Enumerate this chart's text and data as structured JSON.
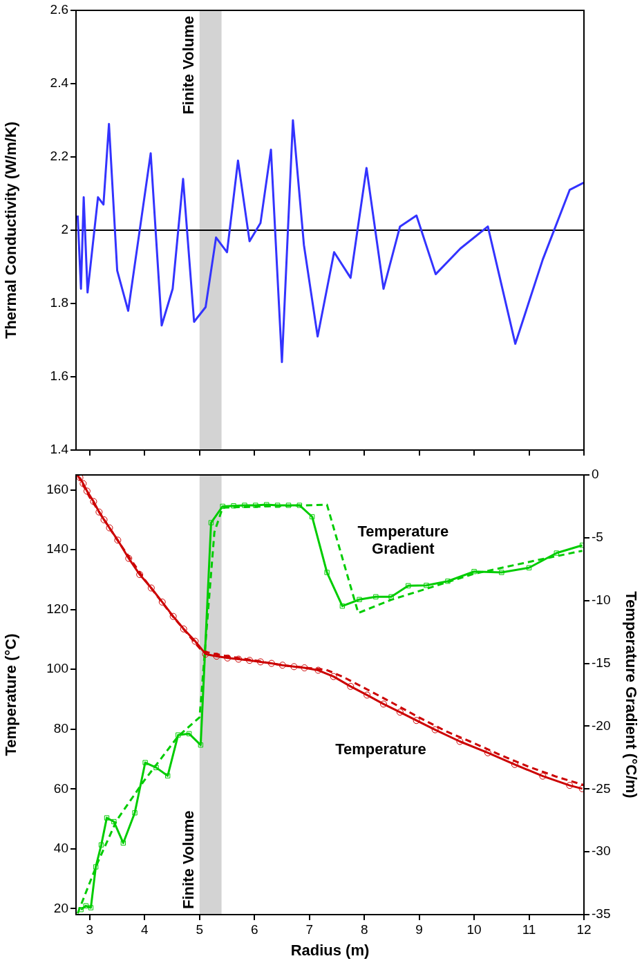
{
  "chart_data": [
    {
      "type": "line",
      "ylabel": "Thermal Conductivity (W/m/K)",
      "color": "#3333ff",
      "x": [
        2.78,
        2.84,
        2.89,
        2.96,
        3.15,
        3.25,
        3.35,
        3.5,
        3.7,
        4.11,
        4.31,
        4.51,
        4.7,
        4.9,
        5.11,
        5.3,
        5.5,
        5.7,
        5.91,
        6.11,
        6.3,
        6.5,
        6.7,
        6.9,
        7.15,
        7.45,
        7.75,
        8.04,
        8.35,
        8.65,
        8.95,
        9.3,
        9.75,
        10.25,
        10.75,
        11.25,
        11.74,
        12.0
      ],
      "values": [
        2.04,
        1.84,
        2.09,
        1.83,
        2.09,
        2.07,
        2.29,
        1.89,
        1.78,
        2.21,
        1.74,
        1.84,
        2.14,
        1.75,
        1.79,
        1.98,
        1.94,
        2.19,
        1.97,
        2.02,
        2.22,
        1.64,
        2.3,
        1.96,
        1.71,
        1.94,
        1.87,
        2.17,
        1.84,
        2.01,
        2.04,
        1.88,
        1.95,
        2.01,
        1.69,
        1.92,
        2.11,
        2.13
      ],
      "xlim": [
        2.75,
        12
      ],
      "xticks": [
        3,
        4,
        5,
        6,
        7,
        8,
        9,
        10,
        11,
        12
      ],
      "ylim": [
        1.4,
        2.6
      ],
      "yticks": [
        1.4,
        1.6,
        1.8,
        2,
        2.2,
        2.4,
        2.6
      ],
      "tick_labels": "y",
      "ref_lines": [
        {
          "axis": "y",
          "value": 2,
          "color": "#000000"
        }
      ],
      "bands": [
        {
          "axis": "x",
          "from": 5.0,
          "to": 5.4,
          "label": "Finite Volume",
          "color": "#d3d3d3"
        }
      ]
    },
    {
      "type": "line",
      "xlabel": "Radius (m)",
      "ylabel": "Temperature (°C)",
      "y2label": "Temperature Gradient (°C/m)",
      "series": [
        {
          "name": "Temperature",
          "color": "#cc0000",
          "marker": "circle",
          "line_style": "solid",
          "x": [
            2.82,
            2.88,
            2.95,
            3.07,
            3.17,
            3.26,
            3.36,
            3.51,
            3.71,
            3.91,
            4.12,
            4.32,
            4.52,
            4.71,
            4.92,
            5.11,
            5.31,
            5.51,
            5.71,
            5.91,
            6.11,
            6.31,
            6.51,
            6.72,
            6.91,
            7.16,
            7.44,
            7.75,
            8.05,
            8.35,
            8.65,
            8.95,
            9.29,
            9.74,
            10.25,
            10.74,
            11.25,
            11.74,
            11.97
          ],
          "values": [
            164.1,
            162.1,
            159.6,
            156.1,
            152.6,
            150.0,
            147.3,
            143.2,
            137.1,
            131.7,
            127.2,
            122.5,
            117.7,
            113.5,
            109.4,
            105.1,
            104.4,
            103.8,
            103.4,
            103.0,
            102.5,
            102.0,
            101.4,
            100.9,
            100.5,
            99.7,
            97.6,
            94.3,
            91.4,
            88.4,
            85.7,
            82.9,
            79.8,
            75.9,
            72.1,
            68.2,
            64.3,
            61.2,
            60.1
          ]
        },
        {
          "color": "#cc0000",
          "marker": "none",
          "line_style": "dashed",
          "x": [
            2.78,
            3,
            3.5,
            4,
            4.5,
            5.05,
            5.5,
            6,
            6.5,
            7,
            7.3,
            7.6,
            8,
            8.5,
            9,
            9.5,
            10,
            10.5,
            11,
            11.5,
            12
          ],
          "values": [
            165,
            157.5,
            143.3,
            130,
            118,
            106,
            104.4,
            103,
            101.4,
            100.4,
            99.9,
            97.6,
            93.8,
            88.9,
            83.9,
            79.2,
            75.3,
            71.2,
            67.4,
            64.1,
            61.3
          ]
        },
        {
          "name": "Temperature Gradient",
          "color": "#00cc00",
          "marker": "square",
          "line_style": "solid",
          "axis": "y2",
          "x": [
            2.84,
            2.93,
            3.02,
            3.11,
            3.21,
            3.31,
            3.44,
            3.61,
            3.82,
            4.01,
            4.21,
            4.42,
            4.61,
            4.81,
            5.02,
            5.21,
            5.42,
            5.62,
            5.82,
            6.02,
            6.22,
            6.42,
            6.62,
            6.82,
            7.05,
            7.32,
            7.6,
            7.91,
            8.21,
            8.49,
            8.8,
            9.13,
            9.52,
            10.0,
            10.5,
            11.0,
            11.5,
            11.97
          ],
          "values": [
            -34.6,
            -34.3,
            -34.45,
            -31.2,
            -29.45,
            -27.3,
            -27.6,
            -29.3,
            -26.9,
            -22.9,
            -23.3,
            -23.95,
            -20.7,
            -20.6,
            -21.5,
            -3.8,
            -2.5,
            -2.46,
            -2.42,
            -2.42,
            -2.37,
            -2.42,
            -2.42,
            -2.42,
            -3.33,
            -7.76,
            -10.44,
            -9.92,
            -9.7,
            -9.7,
            -8.82,
            -8.79,
            -8.46,
            -7.69,
            -7.76,
            -7.39,
            -6.22,
            -5.6
          ]
        },
        {
          "color": "#00cc00",
          "marker": "none",
          "line_style": "dashed",
          "axis": "y2",
          "x": [
            2.78,
            3.15,
            3.49,
            3.98,
            4.61,
            5.0,
            5.27,
            5.42,
            7.32,
            7.89,
            8.49,
            10.0,
            11.26,
            11.97
          ],
          "values": [
            -34.9,
            -30.8,
            -27.5,
            -24.4,
            -20.8,
            -19.3,
            -4.55,
            -2.6,
            -2.37,
            -10.99,
            -9.94,
            -7.87,
            -6.68,
            -6.04
          ]
        }
      ],
      "xlim": [
        2.75,
        12
      ],
      "xticks": [
        3,
        4,
        5,
        6,
        7,
        8,
        9,
        10,
        11,
        12
      ],
      "ylim": [
        18,
        165
      ],
      "yticks": [
        20,
        40,
        60,
        80,
        100,
        120,
        140,
        160
      ],
      "y2lim": [
        -35,
        0
      ],
      "y2ticks": [
        -35,
        -30,
        -25,
        -20,
        -15,
        -10,
        -5,
        0
      ],
      "bands": [
        {
          "axis": "x",
          "from": 5.0,
          "to": 5.4,
          "label": "Finite Volume",
          "color": "#d3d3d3"
        }
      ]
    }
  ]
}
